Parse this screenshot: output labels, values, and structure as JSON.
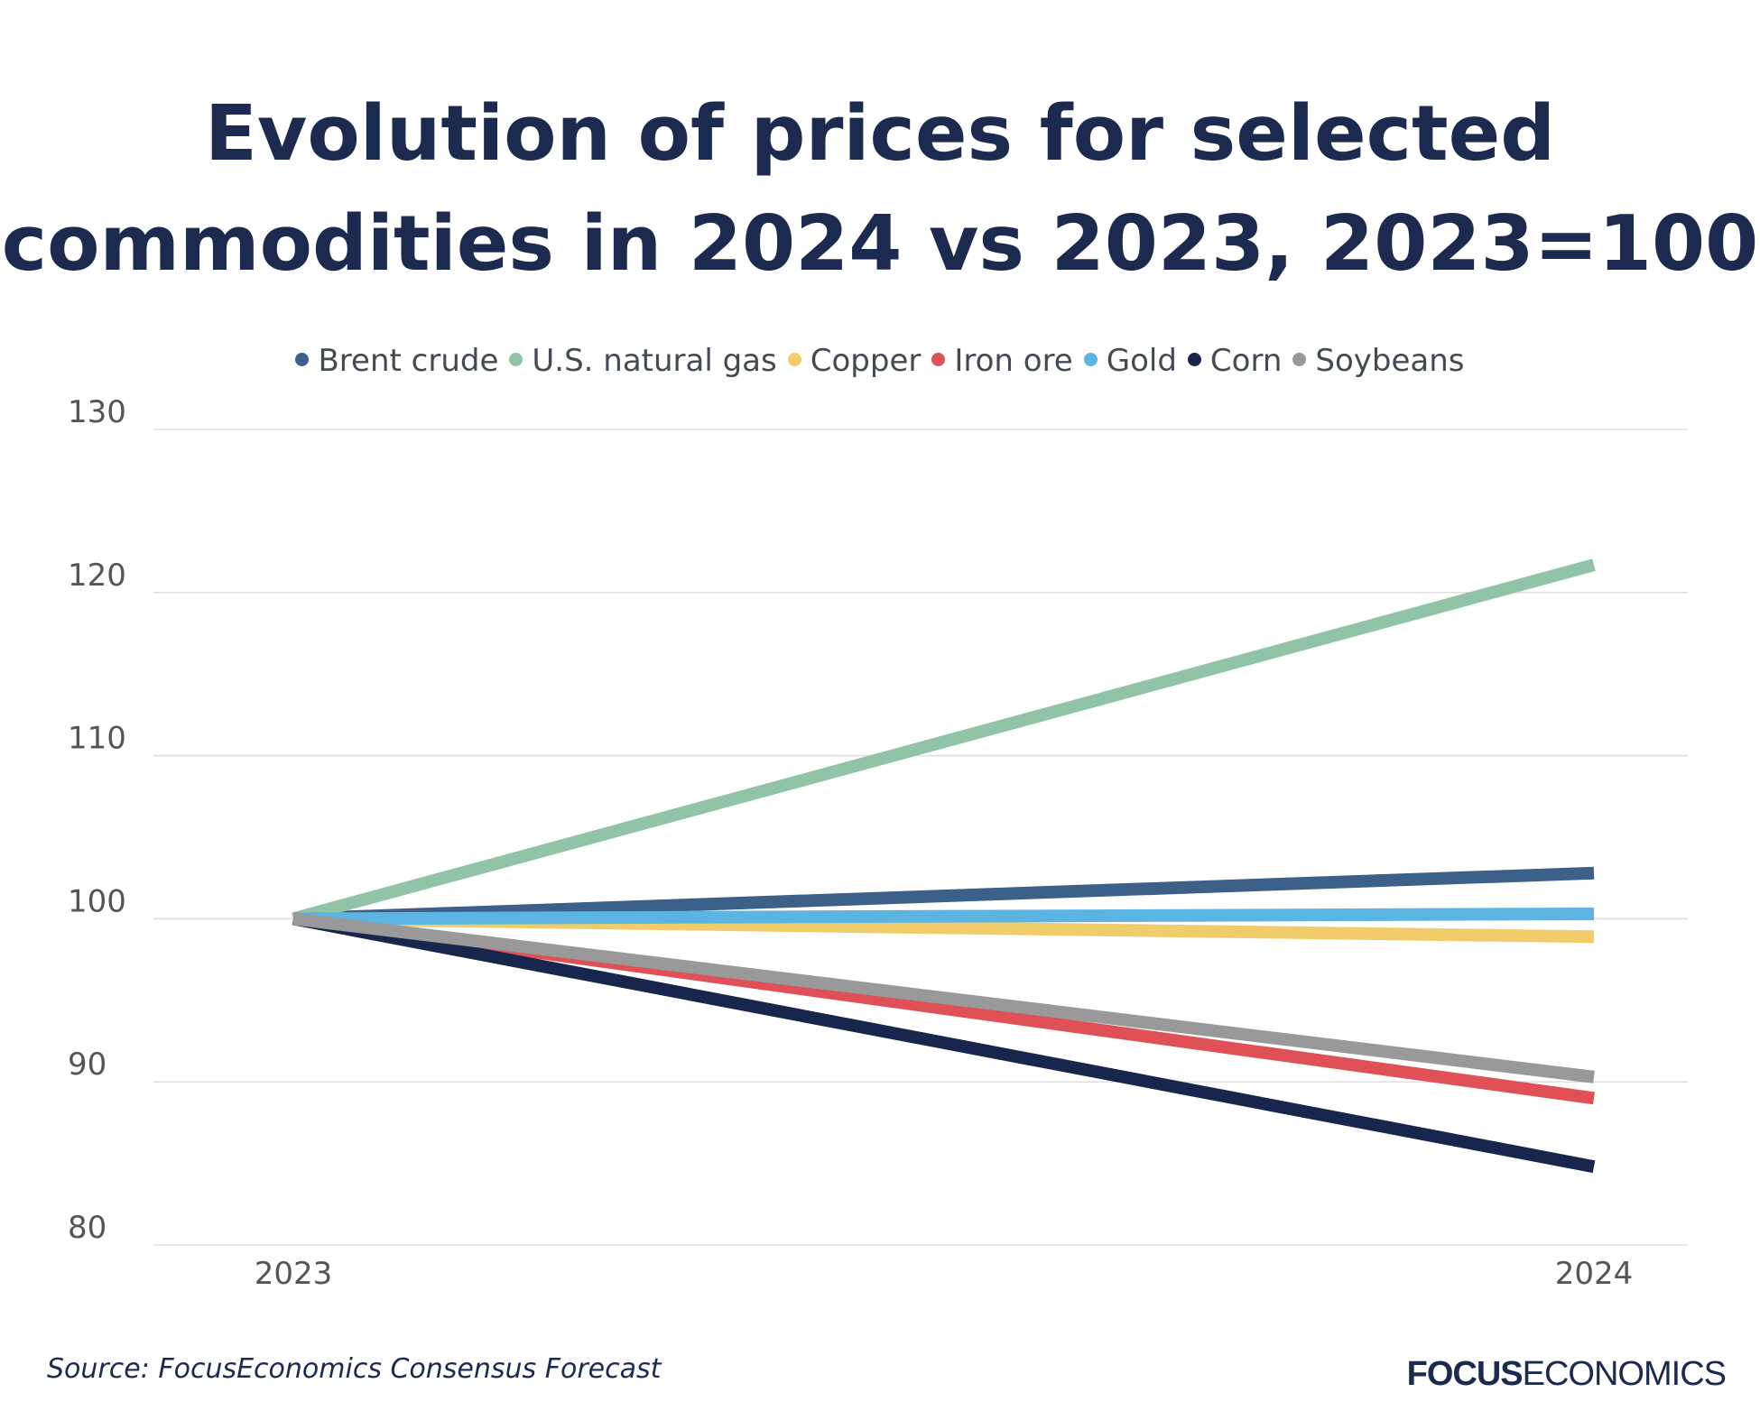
{
  "title_line1": "Evolution of prices for selected",
  "title_line2": "commodities in 2024 vs 2023, 2023=100",
  "source": "Source: FocusEconomics Consensus Forecast",
  "logo": {
    "bold": "FOCUS",
    "regular": "ECONOMICS"
  },
  "chart_data": {
    "type": "line",
    "title": "Evolution of prices for selected commodities in 2024 vs 2023, 2023=100",
    "xlabel": "",
    "ylabel": "",
    "x": [
      "2023",
      "2024"
    ],
    "ylim": [
      80,
      130
    ],
    "yticks": [
      80,
      90,
      100,
      110,
      120,
      130
    ],
    "grid": true,
    "legend_position": "top",
    "series": [
      {
        "name": "Brent crude",
        "color": "#3c6088",
        "values": [
          100,
          102.8
        ]
      },
      {
        "name": "U.S. natural gas",
        "color": "#91c4a6",
        "values": [
          100,
          121.7
        ]
      },
      {
        "name": "Copper",
        "color": "#f0cd6a",
        "values": [
          100,
          98.9
        ]
      },
      {
        "name": "Iron ore",
        "color": "#df5156",
        "values": [
          100,
          89.0
        ]
      },
      {
        "name": "Gold",
        "color": "#5bb4e2",
        "values": [
          100,
          100.3
        ]
      },
      {
        "name": "Corn",
        "color": "#18254c",
        "values": [
          100,
          84.8
        ]
      },
      {
        "name": "Soybeans",
        "color": "#999999",
        "values": [
          100,
          90.3
        ]
      }
    ]
  }
}
